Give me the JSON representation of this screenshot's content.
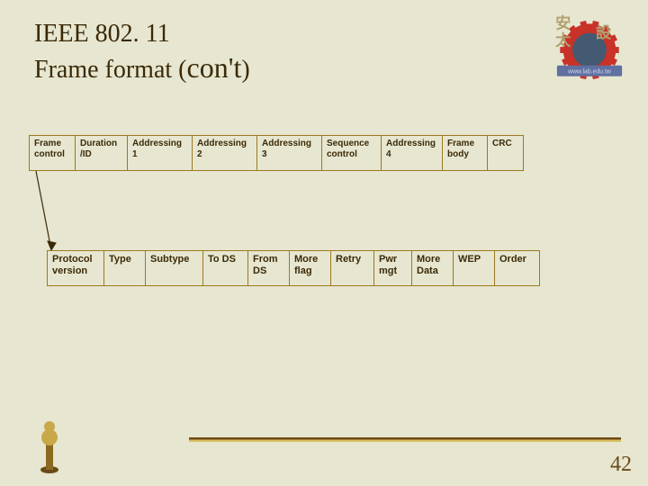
{
  "slide": {
    "background_color": "#e7e6d0",
    "title_color": "#3a2a08",
    "title_line1": "IEEE 802. 11",
    "title_line2_a": "Frame format (",
    "title_line2_b": "con't",
    "title_line2_c": ")",
    "slide_number": "42",
    "slide_number_color": "#6a4a1a",
    "hr_top_color": "#6b4a18",
    "hr_mid_color": "#a68038",
    "hr_bot_color": "#d8c060"
  },
  "logo": {
    "gear_color": "#c83228",
    "hub_color": "#445a72",
    "accent_color": "#b0a070",
    "text_bg": "#6070a0",
    "text_fg": "#d0d8f0"
  },
  "arrow_color": "#3a2a08",
  "compass": {
    "body_top": "#c8a848",
    "body_bot": "#8a6a20",
    "base": "#6a4a18"
  },
  "strip1": {
    "border_color": "#9a7a20",
    "bg_color": "#e7e6d0",
    "text_color": "#3a2a08",
    "cells": [
      {
        "label": "Frame\ncontrol",
        "width": 52
      },
      {
        "label": "Duration\n/ID",
        "width": 58
      },
      {
        "label": "Addressing\n1",
        "width": 72
      },
      {
        "label": "Addressing\n2",
        "width": 72
      },
      {
        "label": "Addressing\n3",
        "width": 72
      },
      {
        "label": "Sequence\ncontrol",
        "width": 66
      },
      {
        "label": "Addressing\n4",
        "width": 68
      },
      {
        "label": "Frame\nbody",
        "width": 50
      },
      {
        "label": "CRC",
        "width": 40
      }
    ]
  },
  "strip2": {
    "border_color": "#9a7a20",
    "bg_color": "#e7e6d0",
    "text_color": "#3a2a08",
    "cells": [
      {
        "label": "Protocol\nversion",
        "width": 64
      },
      {
        "label": "Type",
        "width": 46
      },
      {
        "label": "Subtype",
        "width": 64
      },
      {
        "label": "To DS",
        "width": 50
      },
      {
        "label": "From\nDS",
        "width": 46
      },
      {
        "label": "More\nflag",
        "width": 46
      },
      {
        "label": "Retry",
        "width": 48
      },
      {
        "label": "Pwr\nmgt",
        "width": 42
      },
      {
        "label": "More\nData",
        "width": 46
      },
      {
        "label": "WEP",
        "width": 46
      },
      {
        "label": "Order",
        "width": 50
      }
    ]
  }
}
